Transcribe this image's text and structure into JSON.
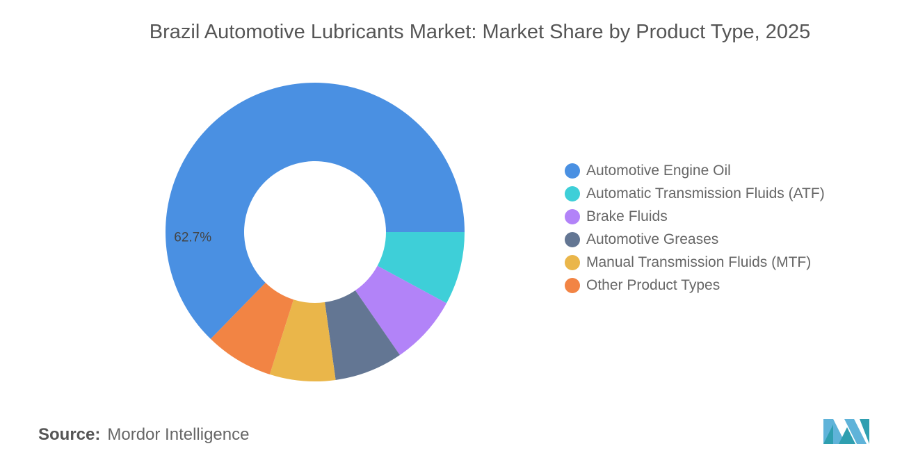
{
  "title": "Brazil Automotive Lubricants Market: Market Share by Product Type, 2025",
  "chart_data": {
    "type": "pie",
    "donut": true,
    "title": "Brazil Automotive Lubricants Market: Market Share by Product Type, 2025",
    "categories": [
      "Automotive Engine Oil",
      "Automatic Transmission Fluids (ATF)",
      "Brake Fluids",
      "Automotive Greases",
      "Manual Transmission Fluids (MTF)",
      "Other Product Types"
    ],
    "values": [
      62.7,
      7.9,
      7.5,
      7.4,
      7.1,
      7.4
    ],
    "colors": [
      "#4a90e2",
      "#3ecfd8",
      "#b283f8",
      "#637693",
      "#eab64a",
      "#f28444"
    ],
    "data_labels": [
      "62.7%",
      "",
      "",
      "",
      "",
      ""
    ],
    "legend_position": "right"
  },
  "source": {
    "label": "Source:",
    "text": "Mordor Intelligence"
  },
  "logo": {
    "colors": [
      "#5fb3d9",
      "#2f9fb0"
    ]
  }
}
